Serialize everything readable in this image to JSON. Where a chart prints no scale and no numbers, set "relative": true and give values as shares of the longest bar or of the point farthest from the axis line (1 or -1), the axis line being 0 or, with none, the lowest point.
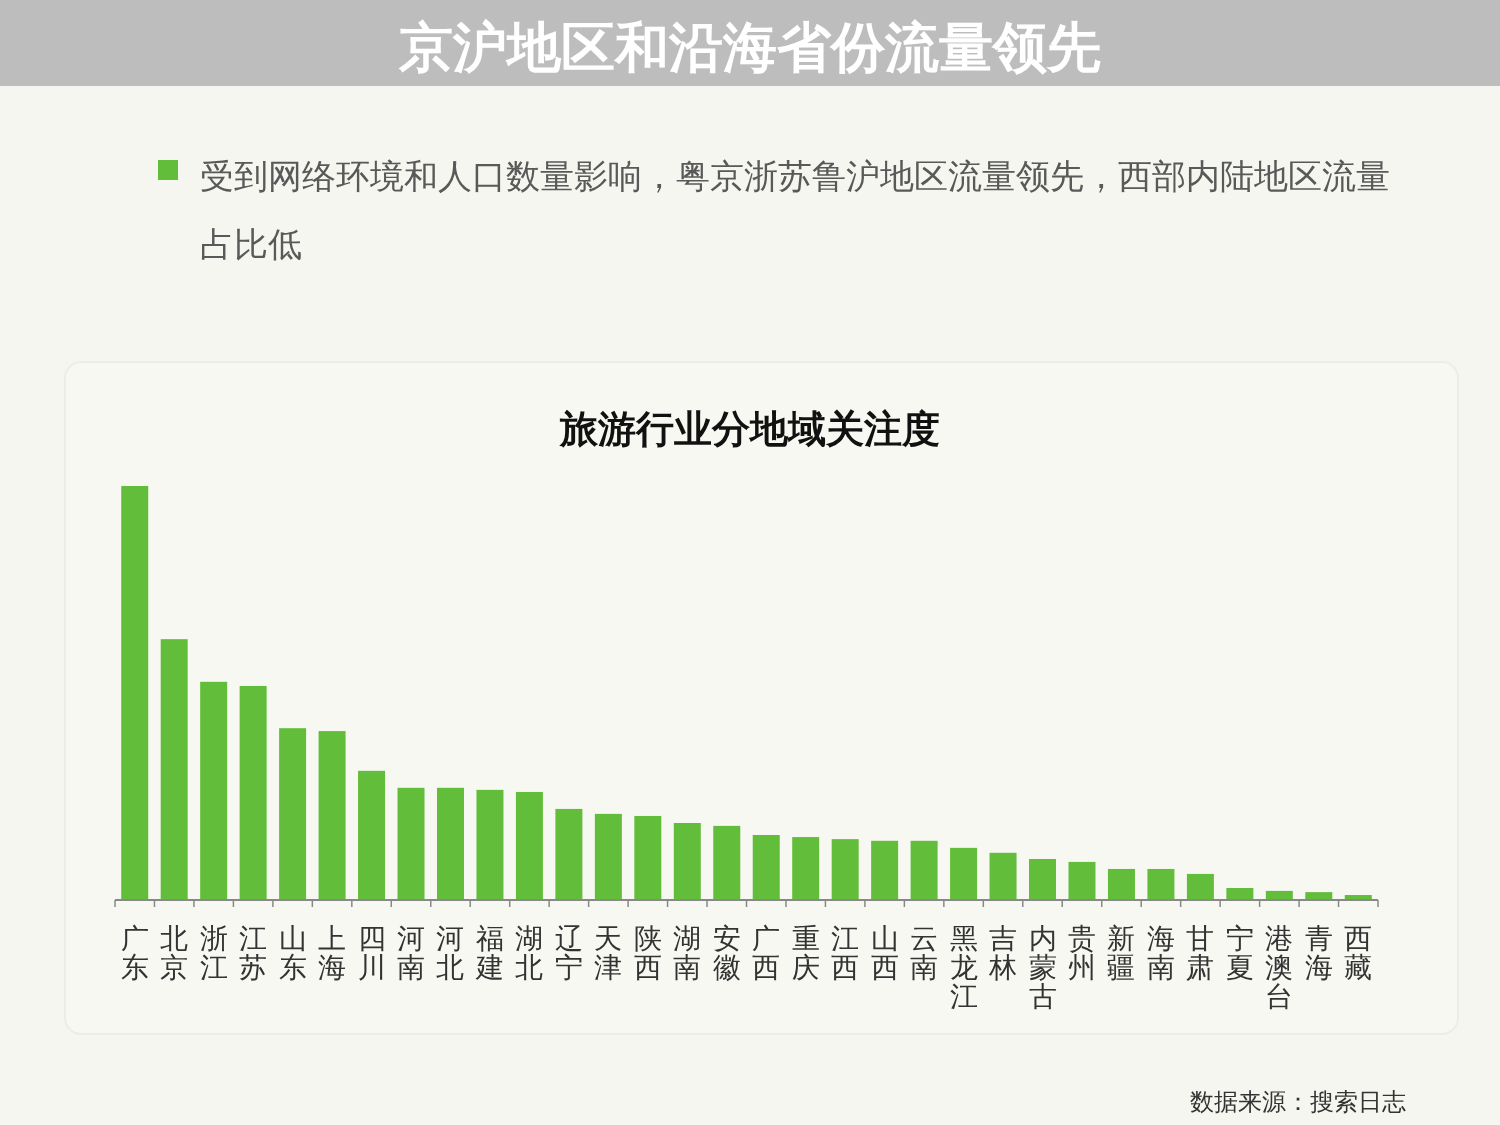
{
  "chart_data": {
    "type": "bar",
    "relative": true,
    "title": "京沪地区和沿海省份流量领先",
    "subtitle": "受到网络环境和人口数量影响，粤京浙苏鲁沪地区流量领先，西部内陆地区流量占比低",
    "annotations": [
      "旅游行业分地域关注度",
      "数据来源：搜索日志"
    ],
    "categories": [
      "广东",
      "北京",
      "浙江",
      "江苏",
      "山东",
      "上海",
      "四川",
      "河南",
      "河北",
      "福建",
      "湖北",
      "辽宁",
      "天津",
      "陕西",
      "湖南",
      "安徽",
      "广西",
      "重庆",
      "江西",
      "山西",
      "云南",
      "黑龙江",
      "吉林",
      "内蒙古",
      "贵州",
      "新疆",
      "海南",
      "甘肃",
      "宁夏",
      "港澳台",
      "青海",
      "西藏"
    ],
    "values": [
      1,
      0.63,
      0.527,
      0.517,
      0.415,
      0.408,
      0.312,
      0.271,
      0.271,
      0.266,
      0.261,
      0.22,
      0.208,
      0.203,
      0.186,
      0.179,
      0.157,
      0.152,
      0.147,
      0.143,
      0.143,
      0.126,
      0.114,
      0.099,
      0.092,
      0.075,
      0.075,
      0.063,
      0.029,
      0.022,
      0.019,
      0.012
    ],
    "color": "#62bd3a"
  }
}
